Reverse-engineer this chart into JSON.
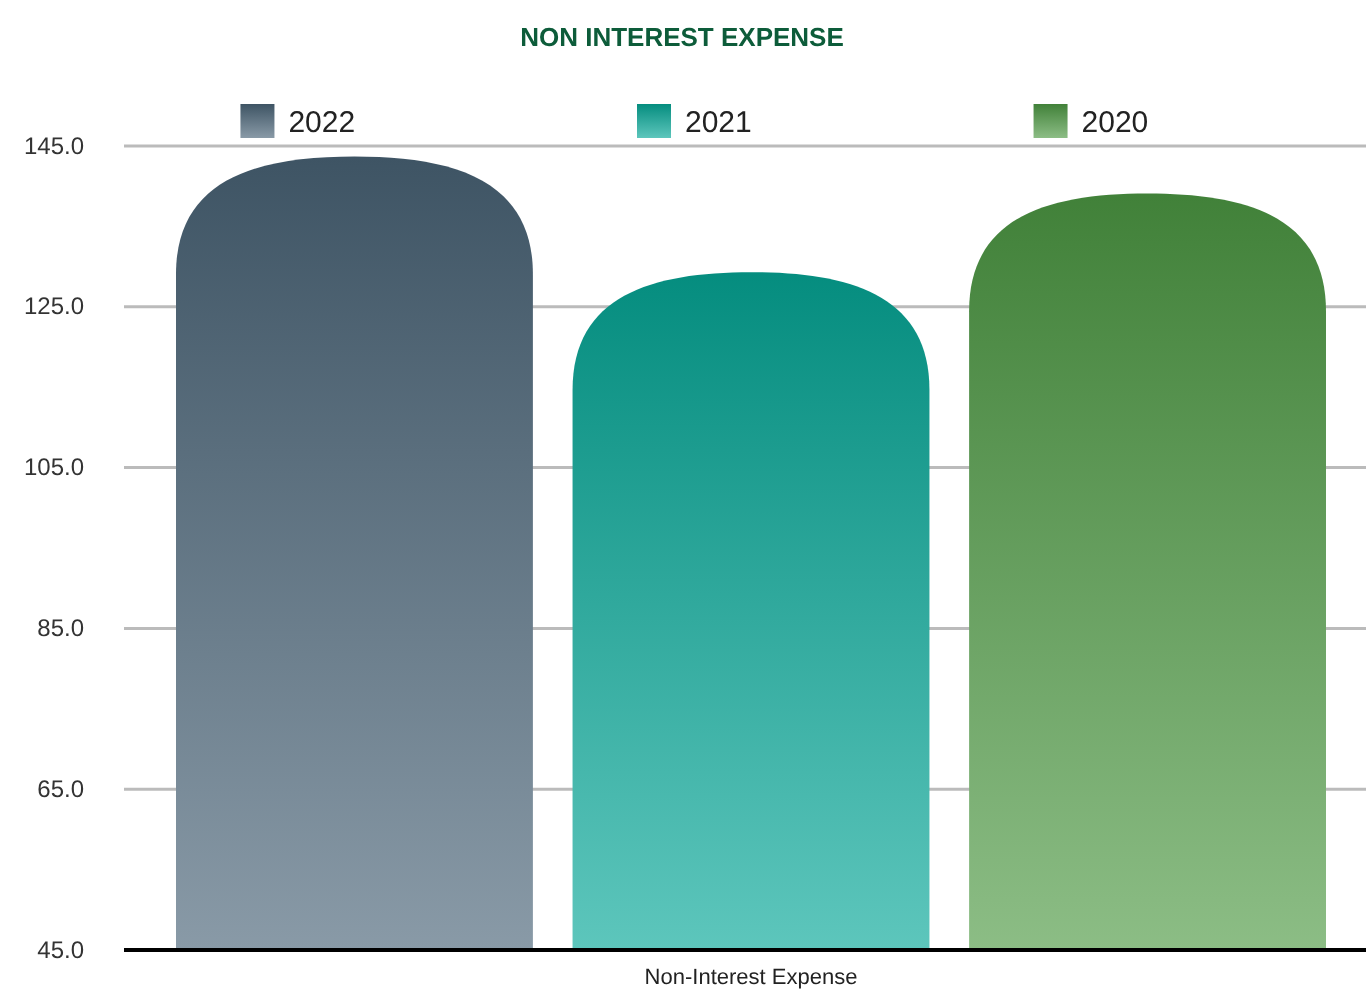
{
  "chart_data": {
    "type": "bar",
    "title": "NON INTEREST EXPENSE",
    "categories": [
      "Non-Interest Expense"
    ],
    "series": [
      {
        "name": "2022",
        "color": "#4a6478",
        "values": [
          143.7
        ]
      },
      {
        "name": "2021",
        "color": "#06a898",
        "values": [
          129.3
        ]
      },
      {
        "name": "2020",
        "color": "#4e9a44",
        "values": [
          139.1
        ]
      }
    ],
    "ylim": [
      45,
      145
    ],
    "yticks": [
      {
        "value": 45,
        "label": "45.0"
      },
      {
        "value": 65,
        "label": "65.0"
      },
      {
        "value": 85,
        "label": "85.0"
      },
      {
        "value": 105,
        "label": "105.0"
      },
      {
        "value": 125,
        "label": "125.0"
      },
      {
        "value": 145,
        "label": "145.0"
      }
    ],
    "grid": "y",
    "legend": "top"
  }
}
